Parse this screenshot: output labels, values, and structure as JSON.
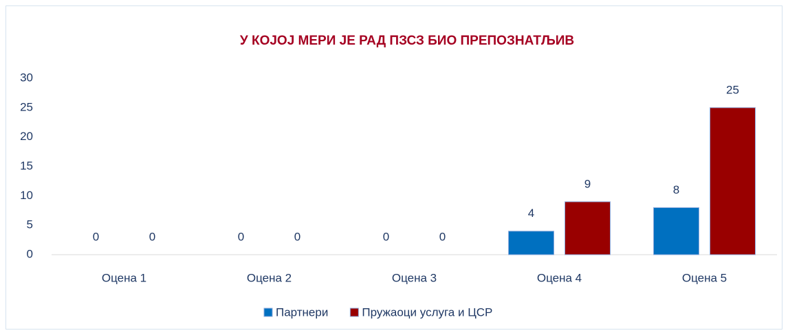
{
  "chart_data": {
    "type": "bar",
    "title": "У КОЈОЈ МЕРИ ЈЕ РАД ПЗСЗ БИО ПРЕПОЗНАТЉИВ",
    "categories": [
      "Оцена 1",
      "Оцена 2",
      "Оцена 3",
      "Оцена 4",
      "Оцена 5"
    ],
    "series": [
      {
        "name": "Партнери",
        "color": "#0070c0",
        "values": [
          0,
          0,
          0,
          4,
          8
        ]
      },
      {
        "name": "Пружаоци услуга и ЦСР",
        "color": "#990000",
        "values": [
          0,
          0,
          0,
          9,
          25
        ]
      }
    ],
    "ylim": [
      0,
      30
    ],
    "yticks": [
      0,
      5,
      10,
      15,
      20,
      25,
      30
    ],
    "grid": false,
    "legend": "bottom"
  }
}
